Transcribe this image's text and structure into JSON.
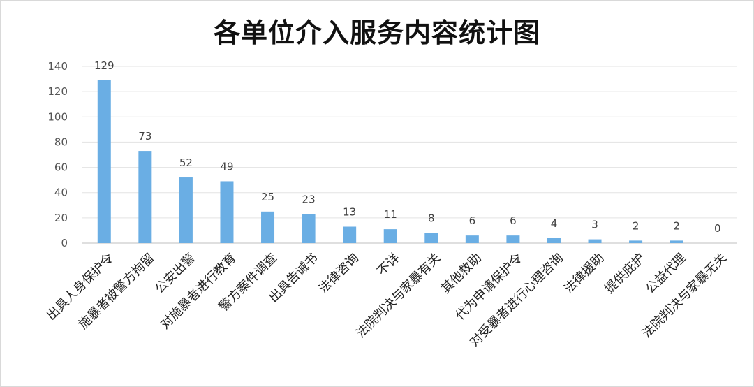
{
  "chart_data": {
    "type": "bar",
    "title": "各单位介入服务内容统计图",
    "xlabel": "",
    "ylabel": "",
    "ylim": [
      0,
      140
    ],
    "yticks": [
      0,
      20,
      40,
      60,
      80,
      100,
      120,
      140
    ],
    "grid": true,
    "legend": "none",
    "bar_color": "#6aaee4",
    "categories": [
      "出具人身保护令",
      "施暴者被警方拘留",
      "公安出警",
      "对施暴者进行教育",
      "警方案件调查",
      "出具告诫书",
      "法律咨询",
      "不详",
      "法院判决与家暴有关",
      "其他救助",
      "代为申请保护令",
      "对受暴者进行心理咨询",
      "法律援助",
      "提供庇护",
      "公益代理",
      "法院判决与家暴无关"
    ],
    "values": [
      129,
      73,
      52,
      49,
      25,
      23,
      13,
      11,
      8,
      6,
      6,
      4,
      3,
      2,
      2,
      0
    ]
  }
}
